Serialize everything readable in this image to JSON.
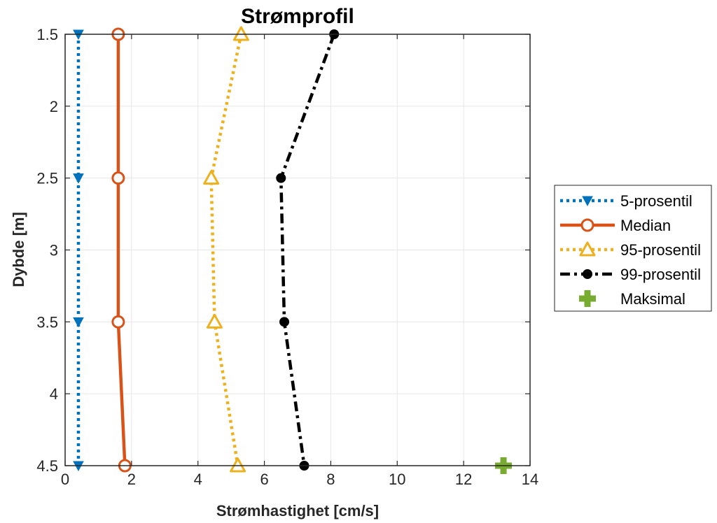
{
  "chart_data": {
    "type": "line",
    "title": "Strømprofil",
    "xlabel": "Strømhastighet [cm/s]",
    "ylabel": "Dybde [m]",
    "xlim": [
      0,
      14
    ],
    "ylim": [
      1.5,
      4.5
    ],
    "y_reversed": true,
    "grid": true,
    "legend_position": "outside-right",
    "x_ticks": [
      "0",
      "2",
      "4",
      "6",
      "8",
      "10",
      "12",
      "14"
    ],
    "y_ticks": [
      "1.5",
      "2",
      "2.5",
      "3",
      "3.5",
      "4",
      "4.5"
    ],
    "series": [
      {
        "name": "5-prosentil",
        "color": "#0072BD",
        "line": "dotted",
        "marker": "triangle-down",
        "points": [
          [
            0.4,
            1.5
          ],
          [
            0.4,
            2.5
          ],
          [
            0.4,
            3.5
          ],
          [
            0.4,
            4.5
          ]
        ]
      },
      {
        "name": "Median",
        "color": "#D95319",
        "line": "solid",
        "marker": "circle-open",
        "points": [
          [
            1.6,
            1.5
          ],
          [
            1.6,
            2.5
          ],
          [
            1.6,
            3.5
          ],
          [
            1.8,
            4.5
          ]
        ]
      },
      {
        "name": "95-prosentil",
        "color": "#EDB120",
        "line": "dotted",
        "marker": "triangle-up-open",
        "points": [
          [
            5.3,
            1.5
          ],
          [
            4.4,
            2.5
          ],
          [
            4.5,
            3.5
          ],
          [
            5.2,
            4.5
          ]
        ]
      },
      {
        "name": "99-prosentil",
        "color": "#000000",
        "line": "dashdot",
        "marker": "dot",
        "points": [
          [
            8.1,
            1.5
          ],
          [
            6.5,
            2.5
          ],
          [
            6.6,
            3.5
          ],
          [
            7.2,
            4.5
          ]
        ]
      },
      {
        "name": "Maksimal",
        "color": "#77AC30",
        "line": "none",
        "marker": "plus",
        "points": [
          [
            13.2,
            4.5
          ]
        ]
      }
    ]
  }
}
